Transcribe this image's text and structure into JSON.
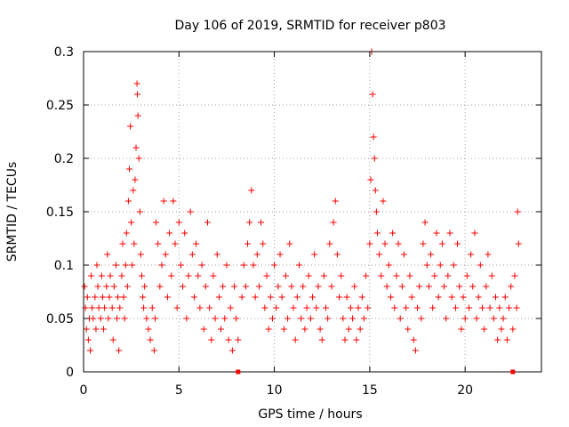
{
  "chart_data": {
    "type": "scatter",
    "title": "Day 106 of 2019, SRMTID for receiver p803",
    "xlabel": "GPS time / hours",
    "ylabel": "SRMTID / TECUs",
    "xlim": [
      0,
      24
    ],
    "ylim": [
      0,
      0.3
    ],
    "grid": true,
    "xticks": [
      0,
      5,
      10,
      15,
      20
    ],
    "xtick_labels": [
      "0",
      "5",
      "10",
      "15",
      "20"
    ],
    "yticks": [
      0,
      0.05,
      0.1,
      0.15,
      0.2,
      0.25,
      0.3
    ],
    "ytick_labels": [
      "0",
      "0.05",
      "0.1",
      "0.15",
      "0.2",
      "0.25",
      "0.3"
    ],
    "marker": "+",
    "color": "#ff0000",
    "series": [
      {
        "name": "SRMTID",
        "points": [
          [
            0.05,
            0.08
          ],
          [
            0.1,
            0.06
          ],
          [
            0.15,
            0.04
          ],
          [
            0.2,
            0.07
          ],
          [
            0.25,
            0.03
          ],
          [
            0.3,
            0.05
          ],
          [
            0.35,
            0.02
          ],
          [
            0.4,
            0.09
          ],
          [
            0.45,
            0.06
          ],
          [
            0.5,
            0.05
          ],
          [
            0.6,
            0.07
          ],
          [
            0.65,
            0.04
          ],
          [
            0.7,
            0.1
          ],
          [
            0.75,
            0.08
          ],
          [
            0.8,
            0.06
          ],
          [
            0.9,
            0.05
          ],
          [
            0.95,
            0.09
          ],
          [
            1.0,
            0.07
          ],
          [
            1.05,
            0.04
          ],
          [
            1.1,
            0.06
          ],
          [
            1.2,
            0.08
          ],
          [
            1.25,
            0.11
          ],
          [
            1.3,
            0.05
          ],
          [
            1.35,
            0.07
          ],
          [
            1.4,
            0.09
          ],
          [
            1.5,
            0.06
          ],
          [
            1.55,
            0.03
          ],
          [
            1.6,
            0.08
          ],
          [
            1.7,
            0.1
          ],
          [
            1.75,
            0.05
          ],
          [
            1.8,
            0.07
          ],
          [
            1.85,
            0.02
          ],
          [
            1.9,
            0.06
          ],
          [
            2.0,
            0.09
          ],
          [
            2.05,
            0.12
          ],
          [
            2.1,
            0.07
          ],
          [
            2.15,
            0.05
          ],
          [
            2.2,
            0.1
          ],
          [
            2.25,
            0.13
          ],
          [
            2.3,
            0.08
          ],
          [
            2.35,
            0.16
          ],
          [
            2.4,
            0.19
          ],
          [
            2.45,
            0.23
          ],
          [
            2.5,
            0.14
          ],
          [
            2.55,
            0.1
          ],
          [
            2.6,
            0.17
          ],
          [
            2.65,
            0.12
          ],
          [
            2.7,
            0.18
          ],
          [
            2.75,
            0.21
          ],
          [
            2.8,
            0.27
          ],
          [
            2.82,
            0.26
          ],
          [
            2.85,
            0.24
          ],
          [
            2.9,
            0.2
          ],
          [
            2.95,
            0.15
          ],
          [
            3.0,
            0.11
          ],
          [
            3.05,
            0.09
          ],
          [
            3.1,
            0.07
          ],
          [
            3.15,
            0.06
          ],
          [
            3.2,
            0.08
          ],
          [
            3.3,
            0.05
          ],
          [
            3.4,
            0.04
          ],
          [
            3.5,
            0.03
          ],
          [
            3.6,
            0.06
          ],
          [
            3.7,
            0.02
          ],
          [
            3.75,
            0.05
          ],
          [
            3.8,
            0.14
          ],
          [
            3.9,
            0.12
          ],
          [
            4.0,
            0.08
          ],
          [
            4.1,
            0.1
          ],
          [
            4.2,
            0.16
          ],
          [
            4.3,
            0.11
          ],
          [
            4.4,
            0.07
          ],
          [
            4.5,
            0.13
          ],
          [
            4.6,
            0.09
          ],
          [
            4.7,
            0.16
          ],
          [
            4.8,
            0.12
          ],
          [
            4.9,
            0.06
          ],
          [
            5.0,
            0.14
          ],
          [
            5.1,
            0.1
          ],
          [
            5.2,
            0.08
          ],
          [
            5.3,
            0.13
          ],
          [
            5.4,
            0.05
          ],
          [
            5.5,
            0.09
          ],
          [
            5.6,
            0.15
          ],
          [
            5.7,
            0.11
          ],
          [
            5.8,
            0.07
          ],
          [
            5.9,
            0.12
          ],
          [
            6.0,
            0.09
          ],
          [
            6.1,
            0.06
          ],
          [
            6.2,
            0.1
          ],
          [
            6.3,
            0.04
          ],
          [
            6.4,
            0.08
          ],
          [
            6.5,
            0.14
          ],
          [
            6.6,
            0.06
          ],
          [
            6.7,
            0.03
          ],
          [
            6.8,
            0.09
          ],
          [
            6.9,
            0.05
          ],
          [
            7.0,
            0.11
          ],
          [
            7.1,
            0.07
          ],
          [
            7.2,
            0.04
          ],
          [
            7.3,
            0.08
          ],
          [
            7.4,
            0.05
          ],
          [
            7.5,
            0.1
          ],
          [
            7.6,
            0.03
          ],
          [
            7.7,
            0.06
          ],
          [
            7.8,
            0.02
          ],
          [
            7.9,
            0.08
          ],
          [
            8.0,
            0.05
          ],
          [
            8.1,
            0.03
          ],
          [
            8.3,
            0.07
          ],
          [
            8.4,
            0.1
          ],
          [
            8.5,
            0.08
          ],
          [
            8.6,
            0.12
          ],
          [
            8.7,
            0.14
          ],
          [
            8.8,
            0.17
          ],
          [
            8.9,
            0.1
          ],
          [
            9.0,
            0.07
          ],
          [
            9.1,
            0.11
          ],
          [
            9.2,
            0.08
          ],
          [
            9.3,
            0.14
          ],
          [
            9.4,
            0.12
          ],
          [
            9.5,
            0.06
          ],
          [
            9.6,
            0.09
          ],
          [
            9.7,
            0.04
          ],
          [
            9.8,
            0.07
          ],
          [
            9.9,
            0.05
          ],
          [
            10.0,
            0.1
          ],
          [
            10.1,
            0.06
          ],
          [
            10.2,
            0.08
          ],
          [
            10.3,
            0.11
          ],
          [
            10.4,
            0.07
          ],
          [
            10.5,
            0.04
          ],
          [
            10.6,
            0.09
          ],
          [
            10.7,
            0.05
          ],
          [
            10.8,
            0.12
          ],
          [
            10.9,
            0.08
          ],
          [
            11.0,
            0.06
          ],
          [
            11.1,
            0.03
          ],
          [
            11.2,
            0.07
          ],
          [
            11.3,
            0.1
          ],
          [
            11.4,
            0.05
          ],
          [
            11.5,
            0.08
          ],
          [
            11.6,
            0.04
          ],
          [
            11.7,
            0.06
          ],
          [
            11.8,
            0.09
          ],
          [
            11.9,
            0.05
          ],
          [
            12.0,
            0.07
          ],
          [
            12.1,
            0.11
          ],
          [
            12.2,
            0.06
          ],
          [
            12.3,
            0.08
          ],
          [
            12.4,
            0.04
          ],
          [
            12.5,
            0.03
          ],
          [
            12.6,
            0.09
          ],
          [
            12.7,
            0.06
          ],
          [
            12.8,
            0.05
          ],
          [
            12.9,
            0.12
          ],
          [
            13.0,
            0.08
          ],
          [
            13.1,
            0.14
          ],
          [
            13.2,
            0.16
          ],
          [
            13.3,
            0.11
          ],
          [
            13.4,
            0.07
          ],
          [
            13.5,
            0.09
          ],
          [
            13.6,
            0.05
          ],
          [
            13.7,
            0.03
          ],
          [
            13.8,
            0.07
          ],
          [
            13.9,
            0.04
          ],
          [
            14.0,
            0.06
          ],
          [
            14.1,
            0.05
          ],
          [
            14.2,
            0.08
          ],
          [
            14.3,
            0.03
          ],
          [
            14.4,
            0.06
          ],
          [
            14.5,
            0.04
          ],
          [
            14.6,
            0.07
          ],
          [
            14.7,
            0.05
          ],
          [
            14.8,
            0.09
          ],
          [
            14.9,
            0.06
          ],
          [
            15.0,
            0.12
          ],
          [
            15.05,
            0.18
          ],
          [
            15.1,
            0.3
          ],
          [
            15.15,
            0.26
          ],
          [
            15.2,
            0.22
          ],
          [
            15.25,
            0.2
          ],
          [
            15.3,
            0.17
          ],
          [
            15.35,
            0.15
          ],
          [
            15.4,
            0.13
          ],
          [
            15.5,
            0.11
          ],
          [
            15.6,
            0.09
          ],
          [
            15.7,
            0.16
          ],
          [
            15.8,
            0.12
          ],
          [
            15.9,
            0.08
          ],
          [
            16.0,
            0.1
          ],
          [
            16.1,
            0.07
          ],
          [
            16.2,
            0.13
          ],
          [
            16.3,
            0.06
          ],
          [
            16.4,
            0.09
          ],
          [
            16.5,
            0.12
          ],
          [
            16.6,
            0.05
          ],
          [
            16.7,
            0.08
          ],
          [
            16.8,
            0.11
          ],
          [
            16.9,
            0.06
          ],
          [
            17.0,
            0.04
          ],
          [
            17.1,
            0.09
          ],
          [
            17.2,
            0.07
          ],
          [
            17.3,
            0.03
          ],
          [
            17.4,
            0.02
          ],
          [
            17.5,
            0.06
          ],
          [
            17.6,
            0.08
          ],
          [
            17.7,
            0.05
          ],
          [
            17.8,
            0.12
          ],
          [
            17.9,
            0.14
          ],
          [
            18.0,
            0.1
          ],
          [
            18.1,
            0.08
          ],
          [
            18.2,
            0.11
          ],
          [
            18.3,
            0.06
          ],
          [
            18.4,
            0.09
          ],
          [
            18.5,
            0.13
          ],
          [
            18.6,
            0.07
          ],
          [
            18.7,
            0.1
          ],
          [
            18.8,
            0.12
          ],
          [
            18.9,
            0.08
          ],
          [
            19.0,
            0.05
          ],
          [
            19.1,
            0.09
          ],
          [
            19.2,
            0.13
          ],
          [
            19.3,
            0.07
          ],
          [
            19.4,
            0.1
          ],
          [
            19.5,
            0.06
          ],
          [
            19.6,
            0.12
          ],
          [
            19.7,
            0.08
          ],
          [
            19.8,
            0.04
          ],
          [
            19.9,
            0.07
          ],
          [
            20.0,
            0.05
          ],
          [
            20.1,
            0.09
          ],
          [
            20.2,
            0.06
          ],
          [
            20.3,
            0.11
          ],
          [
            20.4,
            0.08
          ],
          [
            20.5,
            0.13
          ],
          [
            20.6,
            0.05
          ],
          [
            20.7,
            0.07
          ],
          [
            20.8,
            0.1
          ],
          [
            20.9,
            0.06
          ],
          [
            21.0,
            0.04
          ],
          [
            21.1,
            0.08
          ],
          [
            21.2,
            0.11
          ],
          [
            21.3,
            0.06
          ],
          [
            21.4,
            0.09
          ],
          [
            21.5,
            0.05
          ],
          [
            21.6,
            0.07
          ],
          [
            21.7,
            0.03
          ],
          [
            21.8,
            0.06
          ],
          [
            21.9,
            0.04
          ],
          [
            22.0,
            0.05
          ],
          [
            22.1,
            0.07
          ],
          [
            22.2,
            0.03
          ],
          [
            22.3,
            0.06
          ],
          [
            22.4,
            0.08
          ],
          [
            22.5,
            0.04
          ],
          [
            22.6,
            0.09
          ],
          [
            22.7,
            0.06
          ],
          [
            22.75,
            0.15
          ],
          [
            22.8,
            0.12
          ]
        ]
      }
    ],
    "gap_markers_x": [
      8.1,
      22.5
    ]
  }
}
